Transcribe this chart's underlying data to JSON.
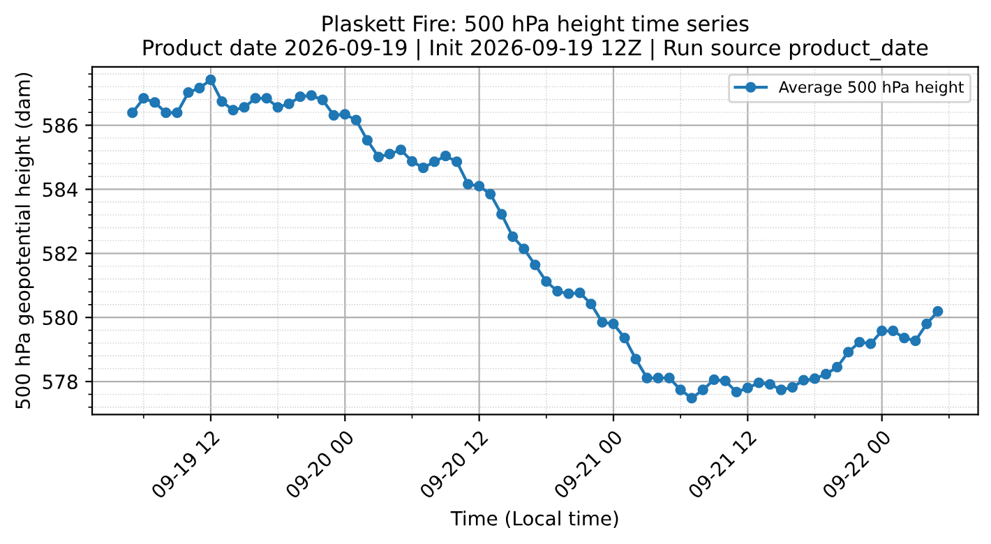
{
  "chart_data": {
    "type": "line",
    "title": "Plaskett Fire: 500 hPa height time series\nProduct date 2026-09-19 | Init 2026-09-19 12Z | Run source product_date",
    "xlabel": "Time (Local time)",
    "ylabel": "500 hPa geopotential height (dam)",
    "x": [
      "2026-09-19T05:00",
      "2026-09-19T06:00",
      "2026-09-19T07:00",
      "2026-09-19T08:00",
      "2026-09-19T09:00",
      "2026-09-19T10:00",
      "2026-09-19T11:00",
      "2026-09-19T12:00",
      "2026-09-19T13:00",
      "2026-09-19T14:00",
      "2026-09-19T15:00",
      "2026-09-19T16:00",
      "2026-09-19T17:00",
      "2026-09-19T18:00",
      "2026-09-19T19:00",
      "2026-09-19T20:00",
      "2026-09-19T21:00",
      "2026-09-19T22:00",
      "2026-09-19T23:00",
      "2026-09-20T00:00",
      "2026-09-20T01:00",
      "2026-09-20T02:00",
      "2026-09-20T03:00",
      "2026-09-20T04:00",
      "2026-09-20T05:00",
      "2026-09-20T06:00",
      "2026-09-20T07:00",
      "2026-09-20T08:00",
      "2026-09-20T09:00",
      "2026-09-20T10:00",
      "2026-09-20T11:00",
      "2026-09-20T12:00",
      "2026-09-20T13:00",
      "2026-09-20T14:00",
      "2026-09-20T15:00",
      "2026-09-20T16:00",
      "2026-09-20T17:00",
      "2026-09-20T18:00",
      "2026-09-20T19:00",
      "2026-09-20T20:00",
      "2026-09-20T21:00",
      "2026-09-20T22:00",
      "2026-09-20T23:00",
      "2026-09-21T00:00",
      "2026-09-21T01:00",
      "2026-09-21T02:00",
      "2026-09-21T03:00",
      "2026-09-21T04:00",
      "2026-09-21T05:00",
      "2026-09-21T06:00",
      "2026-09-21T07:00",
      "2026-09-21T08:00",
      "2026-09-21T09:00",
      "2026-09-21T10:00",
      "2026-09-21T11:00",
      "2026-09-21T12:00",
      "2026-09-21T13:00",
      "2026-09-21T14:00",
      "2026-09-21T15:00",
      "2026-09-21T16:00",
      "2026-09-21T17:00",
      "2026-09-21T18:00",
      "2026-09-21T19:00",
      "2026-09-21T20:00",
      "2026-09-21T21:00",
      "2026-09-21T22:00",
      "2026-09-21T23:00",
      "2026-09-22T00:00",
      "2026-09-22T01:00",
      "2026-09-22T02:00",
      "2026-09-22T03:00",
      "2026-09-22T04:00",
      "2026-09-22T05:00"
    ],
    "series": [
      {
        "name": "Average 500 hPa height",
        "color": "#1f77b4",
        "values": [
          586.39,
          586.84,
          586.71,
          586.39,
          586.39,
          587.02,
          587.16,
          587.42,
          586.74,
          586.47,
          586.56,
          586.84,
          586.84,
          586.56,
          586.67,
          586.89,
          586.93,
          586.79,
          586.31,
          586.34,
          586.16,
          585.53,
          585.01,
          585.1,
          585.23,
          584.87,
          584.67,
          584.86,
          585.04,
          584.86,
          584.16,
          584.1,
          583.85,
          583.22,
          582.52,
          582.14,
          581.64,
          581.12,
          580.82,
          580.74,
          580.77,
          580.42,
          579.85,
          579.8,
          579.36,
          578.7,
          578.11,
          578.11,
          578.11,
          577.74,
          577.48,
          577.74,
          578.06,
          578.02,
          577.67,
          577.8,
          577.96,
          577.91,
          577.74,
          577.82,
          578.04,
          578.09,
          578.23,
          578.45,
          578.92,
          579.23,
          579.18,
          579.58,
          579.58,
          579.36,
          579.27,
          579.8,
          580.19
        ]
      }
    ],
    "xlim": [
      "2026-09-19T01:24",
      "2026-09-22T08:36"
    ],
    "xticks": [
      {
        "value": "2026-09-19T12:00",
        "label": "09-19 12"
      },
      {
        "value": "2026-09-20T00:00",
        "label": "09-20 00"
      },
      {
        "value": "2026-09-20T12:00",
        "label": "09-20 12"
      },
      {
        "value": "2026-09-21T00:00",
        "label": "09-21 00"
      },
      {
        "value": "2026-09-21T12:00",
        "label": "09-21 12"
      },
      {
        "value": "2026-09-22T00:00",
        "label": "09-22 00"
      }
    ],
    "ylim": [
      576.97,
      587.82
    ],
    "yticks": [
      578,
      580,
      582,
      584,
      586
    ],
    "grid": true,
    "legend": "top right",
    "marker": "circle",
    "line_style": "solid"
  }
}
